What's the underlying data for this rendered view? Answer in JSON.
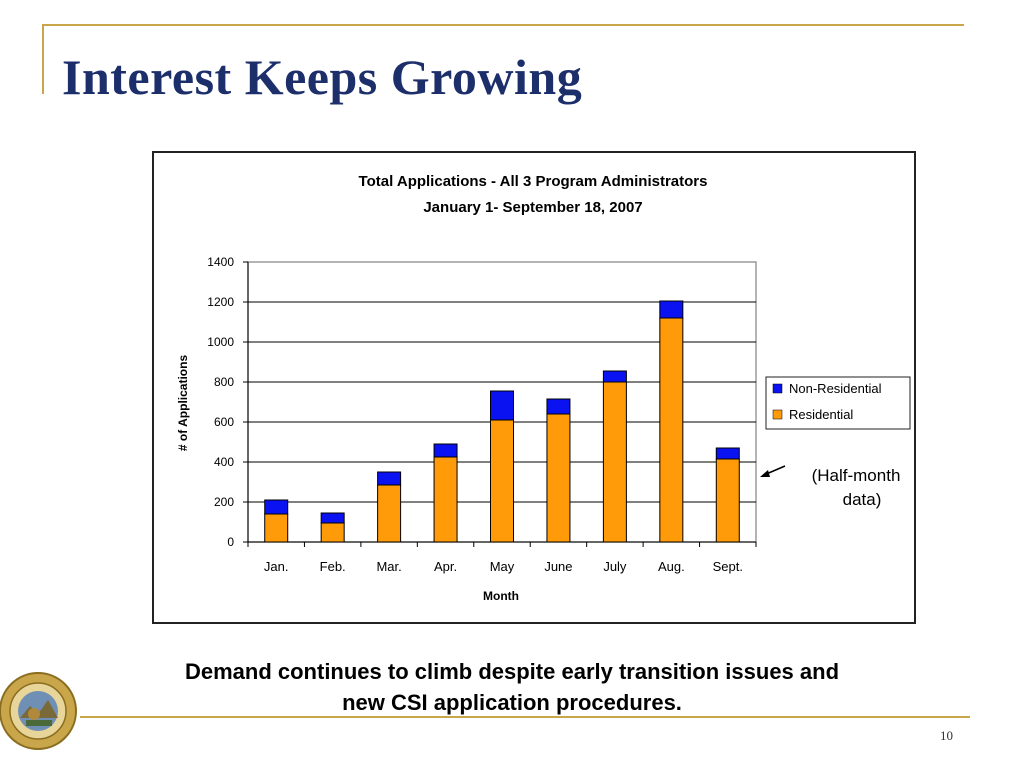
{
  "slide": {
    "title": "Interest Keeps Growing",
    "caption_line1": "Demand continues to climb despite early transition issues and",
    "caption_line2": "new CSI application procedures.",
    "page_number": "10",
    "annotation_line1": "(Half-month",
    "annotation_line2": "data)"
  },
  "colors": {
    "non_residential": "#0a12f2",
    "residential": "#ff9a08",
    "accent": "#c9a64a",
    "title": "#1c2f6b"
  },
  "chart_data": {
    "type": "bar",
    "stacked": true,
    "title": "Total Applications - All 3 Program Administrators",
    "subtitle": "January  1- September 18, 2007",
    "xlabel": "Month",
    "ylabel": "# of Applications",
    "ylim": [
      0,
      1400
    ],
    "yticks": [
      0,
      200,
      400,
      600,
      800,
      1000,
      1200,
      1400
    ],
    "grid": true,
    "legend_position": "right",
    "categories": [
      "Jan.",
      "Feb.",
      "Mar.",
      "Apr.",
      "May",
      "June",
      "July",
      "Aug.",
      "Sept."
    ],
    "series": [
      {
        "name": "Residential",
        "values": [
          140,
          95,
          285,
          425,
          610,
          640,
          800,
          1120,
          415
        ]
      },
      {
        "name": "Non-Residential",
        "values": [
          70,
          50,
          65,
          65,
          145,
          75,
          55,
          85,
          55
        ]
      }
    ],
    "legend": [
      "Non-Residential",
      "Residential"
    ]
  }
}
